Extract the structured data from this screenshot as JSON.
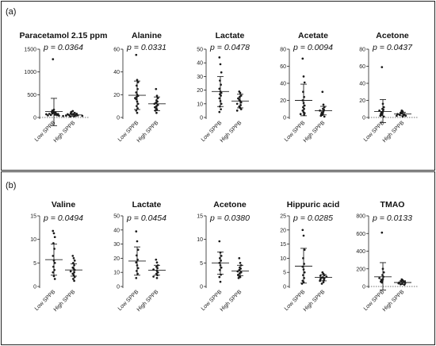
{
  "figure": {
    "panels": [
      {
        "letter": "(a)"
      },
      {
        "letter": "(b)"
      }
    ]
  },
  "chart_data": [
    {
      "panel": "(a)",
      "type": "scatter",
      "title": "Paracetamol 2.15 ppm",
      "p_value": "p = 0.0364",
      "categories": [
        "Low SPPB",
        "High SPPB"
      ],
      "ylim": [
        0,
        1500
      ],
      "yticks": [
        0,
        500,
        1000,
        1500
      ],
      "zero_line": true,
      "groups": [
        {
          "name": "Low SPPB",
          "mean": 130,
          "sd_low": -180,
          "sd_high": 420,
          "values": [
            1280,
            170,
            150,
            130,
            120,
            110,
            100,
            90,
            85,
            80,
            75,
            70,
            60,
            55,
            50,
            45,
            40
          ]
        },
        {
          "name": "High SPPB",
          "mean": 55,
          "sd_low": 25,
          "sd_high": 90,
          "values": [
            140,
            120,
            100,
            90,
            80,
            70,
            65,
            60,
            55,
            50,
            45,
            40,
            35,
            30,
            25,
            20
          ]
        }
      ]
    },
    {
      "panel": "(a)",
      "type": "scatter",
      "title": "Alanine",
      "p_value": "p = 0.0331",
      "categories": [
        "Low SPPB",
        "High SPPB"
      ],
      "ylim": [
        0,
        60
      ],
      "yticks": [
        0,
        20,
        40,
        60
      ],
      "zero_line": false,
      "groups": [
        {
          "name": "Low SPPB",
          "mean": 19.5,
          "sd_low": 7,
          "sd_high": 32,
          "values": [
            55,
            33,
            31,
            28,
            25,
            22,
            20,
            19,
            18,
            17,
            16,
            14,
            12,
            10,
            8,
            6,
            4
          ]
        },
        {
          "name": "High SPPB",
          "mean": 12,
          "sd_low": 6,
          "sd_high": 18,
          "values": [
            25,
            19,
            17,
            15,
            14,
            13,
            12,
            11,
            10,
            9,
            8,
            7,
            6,
            4
          ]
        }
      ]
    },
    {
      "panel": "(a)",
      "type": "scatter",
      "title": "Lactate",
      "p_value": "p = 0.0478",
      "categories": [
        "Low SPPB",
        "High SPPB"
      ],
      "ylim": [
        0,
        50
      ],
      "yticks": [
        0,
        10,
        20,
        30,
        40,
        50
      ],
      "zero_line": false,
      "groups": [
        {
          "name": "Low SPPB",
          "mean": 19,
          "sd_low": 8,
          "sd_high": 30,
          "values": [
            44,
            39,
            33,
            27,
            24,
            21,
            19,
            18,
            17,
            16,
            14,
            12,
            10,
            8,
            6,
            4
          ]
        },
        {
          "name": "High SPPB",
          "mean": 12,
          "sd_low": 7,
          "sd_high": 17,
          "values": [
            19,
            18,
            16,
            15,
            14,
            13,
            12,
            11,
            10,
            9,
            8,
            7,
            6,
            5
          ]
        }
      ]
    },
    {
      "panel": "(a)",
      "type": "scatter",
      "title": "Acetate",
      "p_value": "p = 0.0094",
      "categories": [
        "Low SPPB",
        "High SPPB"
      ],
      "ylim": [
        0,
        80
      ],
      "yticks": [
        0,
        20,
        40,
        60,
        80
      ],
      "zero_line": false,
      "groups": [
        {
          "name": "Low SPPB",
          "mean": 20,
          "sd_low": 2,
          "sd_high": 39,
          "values": [
            69,
            48,
            41,
            30,
            24,
            20,
            17,
            14,
            12,
            10,
            8,
            6,
            5,
            4,
            3
          ]
        },
        {
          "name": "High SPPB",
          "mean": 8,
          "sd_low": 3,
          "sd_high": 13,
          "values": [
            30,
            15,
            12,
            10,
            9,
            8,
            7,
            6,
            5,
            4,
            3,
            2,
            1
          ]
        }
      ]
    },
    {
      "panel": "(a)",
      "type": "scatter",
      "title": "Acetone",
      "p_value": "p = 0.0437",
      "categories": [
        "Low SPPB",
        "High SPPB"
      ],
      "ylim": [
        0,
        80
      ],
      "yticks": [
        0,
        20,
        40,
        60,
        80
      ],
      "zero_line": true,
      "groups": [
        {
          "name": "Low SPPB",
          "mean": 7,
          "sd_low": -6,
          "sd_high": 21,
          "values": [
            59,
            16,
            12,
            10,
            9,
            8,
            7,
            6,
            5,
            4,
            3,
            2,
            1
          ]
        },
        {
          "name": "High SPPB",
          "mean": 4,
          "sd_low": 2,
          "sd_high": 6,
          "values": [
            8,
            7,
            6,
            5,
            5,
            4,
            4,
            3,
            3,
            2,
            2,
            1
          ]
        }
      ]
    },
    {
      "panel": "(b)",
      "type": "scatter",
      "title": "Valine",
      "p_value": "p = 0.0494",
      "categories": [
        "Low SPPB",
        "High SPPB"
      ],
      "ylim": [
        0,
        15
      ],
      "yticks": [
        0,
        5,
        10,
        15
      ],
      "zero_line": false,
      "groups": [
        {
          "name": "Low SPPB",
          "mean": 5.7,
          "sd_low": 2.4,
          "sd_high": 9,
          "values": [
            11.8,
            11.3,
            10.5,
            9.2,
            8,
            6.5,
            5.5,
            5,
            4.2,
            3.5,
            3,
            2.2,
            1.6
          ]
        },
        {
          "name": "High SPPB",
          "mean": 3.5,
          "sd_low": 2.2,
          "sd_high": 4.8,
          "values": [
            6.5,
            6,
            5.5,
            5,
            4.5,
            4,
            3.8,
            3.5,
            3.2,
            3,
            2.7,
            2.4,
            2,
            1.6,
            1.2
          ]
        }
      ]
    },
    {
      "panel": "(b)",
      "type": "scatter",
      "title": "Lactate",
      "p_value": "p = 0.0454",
      "categories": [
        "Low SPPB",
        "High SPPB"
      ],
      "ylim": [
        0,
        50
      ],
      "yticks": [
        0,
        10,
        20,
        30,
        40,
        50
      ],
      "zero_line": false,
      "groups": [
        {
          "name": "Low SPPB",
          "mean": 18,
          "sd_low": 8,
          "sd_high": 28,
          "values": [
            39,
            32,
            26,
            22,
            19,
            17,
            15,
            13,
            11,
            9,
            6
          ]
        },
        {
          "name": "High SPPB",
          "mean": 11.5,
          "sd_low": 8,
          "sd_high": 15,
          "values": [
            19,
            17,
            15,
            14,
            13,
            12,
            11,
            10,
            9,
            8,
            7,
            6
          ]
        }
      ]
    },
    {
      "panel": "(b)",
      "type": "scatter",
      "title": "Acetone",
      "p_value": "p = 0.0380",
      "categories": [
        "Low SPPB",
        "High SPPB"
      ],
      "ylim": [
        0,
        15
      ],
      "yticks": [
        0,
        5,
        10,
        15
      ],
      "zero_line": false,
      "groups": [
        {
          "name": "Low SPPB",
          "mean": 5,
          "sd_low": 2.6,
          "sd_high": 7.3,
          "values": [
            9.6,
            7.2,
            6.5,
            6,
            5.5,
            5,
            4.5,
            4,
            3.5,
            2.5,
            2,
            1
          ]
        },
        {
          "name": "High SPPB",
          "mean": 3.3,
          "sd_low": 2.3,
          "sd_high": 4.5,
          "values": [
            6,
            5,
            4.5,
            4,
            3.8,
            3.5,
            3.2,
            3,
            2.8,
            2.5,
            2.2,
            2,
            1.8
          ]
        }
      ]
    },
    {
      "panel": "(b)",
      "type": "scatter",
      "title": "Hippuric acid",
      "p_value": "p = 0.0285",
      "categories": [
        "Low SPPB",
        "High SPPB"
      ],
      "ylim": [
        0,
        25
      ],
      "yticks": [
        0,
        5,
        10,
        15,
        20,
        25
      ],
      "zero_line": false,
      "groups": [
        {
          "name": "Low SPPB",
          "mean": 7.2,
          "sd_low": 1.2,
          "sd_high": 13.5,
          "values": [
            20,
            18,
            13,
            10,
            8,
            7,
            6,
            5,
            4,
            3,
            2,
            1.5,
            1
          ]
        },
        {
          "name": "High SPPB",
          "mean": 3.2,
          "sd_low": 2,
          "sd_high": 4.2,
          "values": [
            5,
            4.5,
            4,
            3.8,
            3.5,
            3.2,
            3,
            2.8,
            2.5,
            2.2,
            2,
            1.5,
            1
          ]
        }
      ]
    },
    {
      "panel": "(b)",
      "type": "scatter",
      "title": "TMAO",
      "p_value": "p = 0.0133",
      "categories": [
        "Low SPPB",
        "High SPPB"
      ],
      "ylim": [
        0,
        800
      ],
      "yticks": [
        0,
        200,
        400,
        600,
        800
      ],
      "zero_line": true,
      "groups": [
        {
          "name": "Low SPPB",
          "mean": 110,
          "sd_low": -40,
          "sd_high": 270,
          "values": [
            610,
            200,
            160,
            130,
            110,
            95,
            85,
            75,
            65,
            55,
            45
          ]
        },
        {
          "name": "High SPPB",
          "mean": 45,
          "sd_low": 25,
          "sd_high": 65,
          "values": [
            80,
            70,
            60,
            55,
            50,
            45,
            40,
            35,
            30,
            25,
            20
          ]
        }
      ]
    }
  ]
}
